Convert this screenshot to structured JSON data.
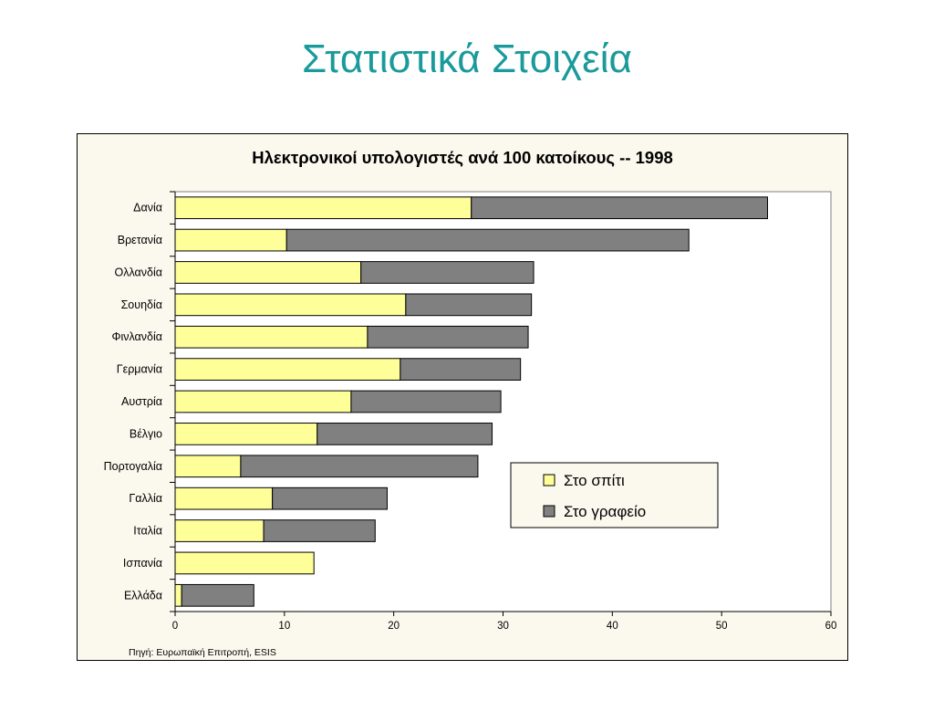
{
  "slide": {
    "title": "Στατιστικά Στοιχεία"
  },
  "chart_data": {
    "type": "bar",
    "orientation": "horizontal",
    "stacked": true,
    "title": "Ηλεκτρονικοί υπολογιστές ανά 100 κατοίκους -- 1998",
    "source": "Πηγή: Ευρωπαϊκή Επιτροπή, ESIS",
    "categories": [
      "Δανία",
      "Βρετανία",
      "Ολλανδία",
      "Σουηδία",
      "Φινλανδία",
      "Γερμανία",
      "Αυστρία",
      "Βέλγιο",
      "Πορτογαλία",
      "Γαλλία",
      "Ιταλία",
      "Ισπανία",
      "Ελλάδα"
    ],
    "series": [
      {
        "name": "Στο σπίτι",
        "color": "#ffff99",
        "values": [
          27.1,
          10.2,
          17.0,
          21.1,
          17.6,
          20.6,
          16.1,
          13.0,
          6.0,
          8.9,
          8.1,
          12.7,
          0.6
        ]
      },
      {
        "name": "Στο γραφείο",
        "color": "#808080",
        "values": [
          27.1,
          36.8,
          15.8,
          11.5,
          14.7,
          11.0,
          13.7,
          16.0,
          21.7,
          10.5,
          10.2,
          0.0,
          6.6
        ]
      }
    ],
    "xlim": [
      0,
      60
    ],
    "xticks": [
      "0",
      "10",
      "20",
      "30",
      "40",
      "50",
      "60"
    ],
    "grid": false,
    "legend_position": "lower-right"
  }
}
